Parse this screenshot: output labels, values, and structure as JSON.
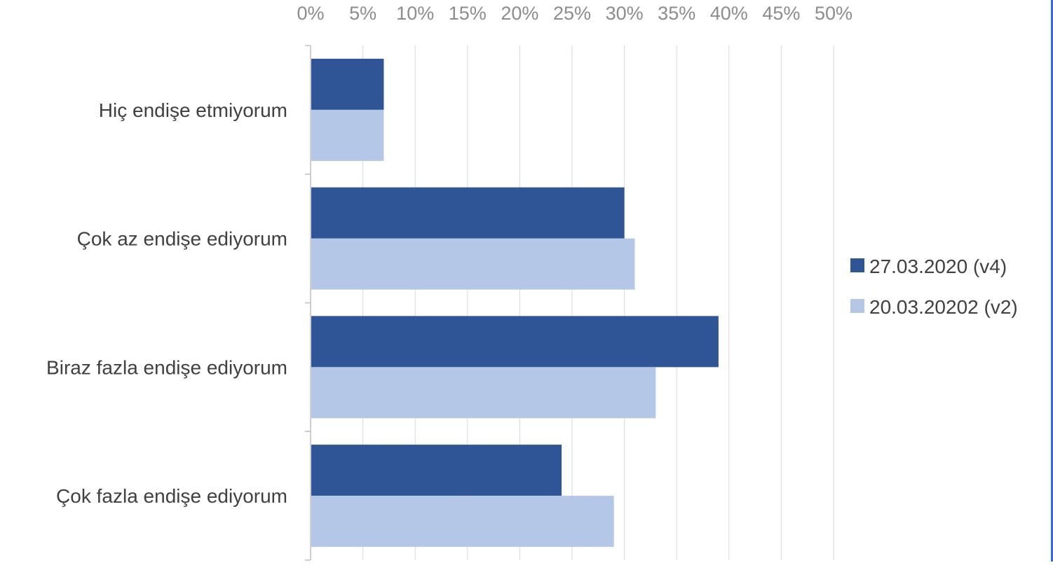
{
  "chart_data": {
    "type": "bar",
    "orientation": "horizontal",
    "title": "",
    "xlabel": "",
    "ylabel": "",
    "categories": [
      "Hiç endişe etmiyorum",
      "Çok az endişe ediyorum",
      "Biraz fazla endişe ediyorum",
      "Çok fazla endişe ediyorum"
    ],
    "series": [
      {
        "name": "27.03.2020 (v4)",
        "values": [
          7,
          30,
          39,
          24
        ],
        "color": "#2f5597"
      },
      {
        "name": "20.03.20202 (v2)",
        "values": [
          7,
          31,
          33,
          29
        ],
        "color": "#b4c7e7"
      }
    ],
    "xlim": [
      0,
      50
    ],
    "x_ticks": [
      "0%",
      "5%",
      "10%",
      "15%",
      "20%",
      "25%",
      "30%",
      "35%",
      "40%",
      "45%",
      "50%"
    ],
    "x_axis_position": "top",
    "grid": true,
    "legend_position": "right"
  }
}
